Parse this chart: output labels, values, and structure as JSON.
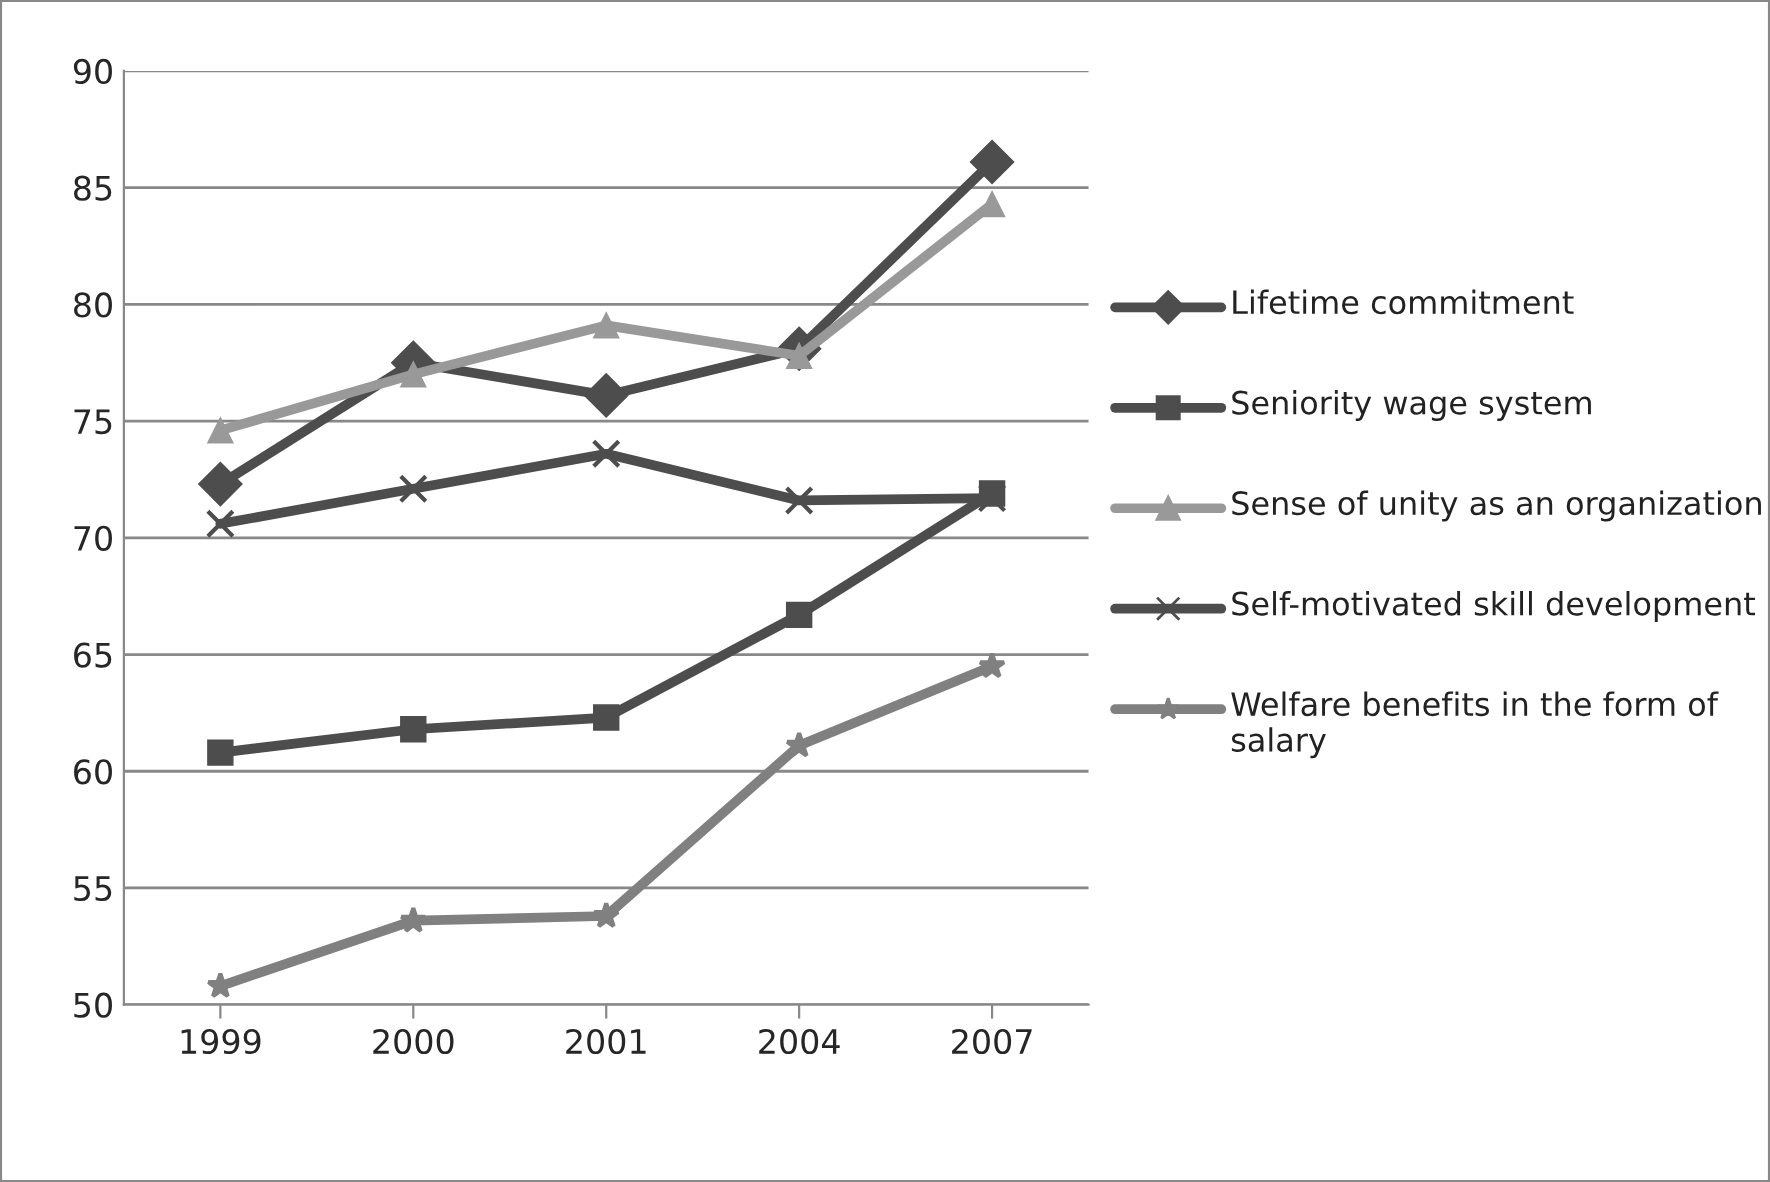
{
  "chart_data": {
    "type": "line",
    "categories": [
      "1999",
      "2000",
      "2001",
      "2004",
      "2007"
    ],
    "series": [
      {
        "name": "Lifetime commitment",
        "color": "#4d4d4d",
        "marker": "diamond",
        "values": [
          72.3,
          77.5,
          76.1,
          78.1,
          86.1
        ]
      },
      {
        "name": "Seniority wage system",
        "color": "#4d4d4d",
        "marker": "square",
        "values": [
          60.8,
          61.8,
          62.3,
          66.7,
          71.9
        ]
      },
      {
        "name": "Sense of unity as an organization",
        "color": "#999999",
        "marker": "triangle",
        "values": [
          74.6,
          77.0,
          79.1,
          77.8,
          84.3
        ]
      },
      {
        "name": "Self-motivated skill development",
        "color": "#4d4d4d",
        "marker": "cross",
        "values": [
          70.6,
          72.1,
          73.6,
          71.6,
          71.7
        ]
      },
      {
        "name": "Welfare benefits in the form of salary",
        "color": "#808080",
        "marker": "star",
        "values": [
          50.8,
          53.6,
          53.8,
          61.1,
          64.5
        ]
      }
    ],
    "ylim": [
      50,
      90
    ],
    "yticks": [
      50,
      55,
      60,
      65,
      70,
      75,
      80,
      85,
      90
    ],
    "grid": "y",
    "legend": "right",
    "line_style": "solid"
  }
}
